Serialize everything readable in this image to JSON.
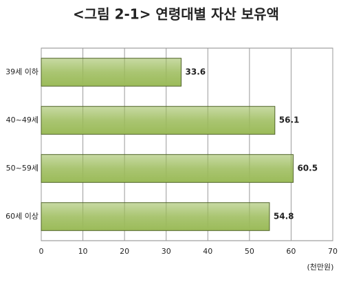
{
  "chart_data": {
    "type": "bar",
    "title": "<그림 2-1> 연령대별 자산 보유액",
    "categories": [
      "39세 이하",
      "40~49세",
      "50~59세",
      "60세 이상"
    ],
    "values": [
      33.6,
      56.1,
      60.5,
      54.8
    ],
    "color": "#9bbb59",
    "xlim": [
      0,
      70
    ],
    "xticks": [
      0,
      10,
      20,
      30,
      40,
      50,
      60,
      70
    ],
    "x_unit_label": "(천만원)",
    "grid": true
  }
}
